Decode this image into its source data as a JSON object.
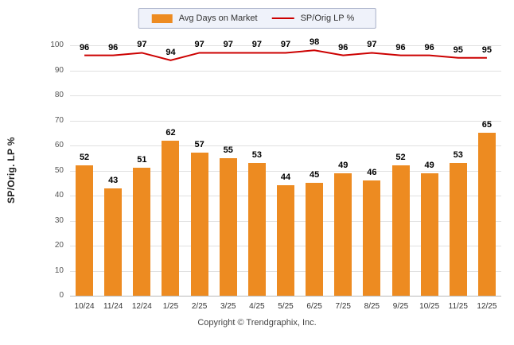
{
  "legend": {
    "bar_label": "Avg Days on Market",
    "line_label": "SP/Orig LP %"
  },
  "y_axis_title": "SP/Orig. LP %",
  "footer": "Copyright © Trendgraphix, Inc.",
  "colors": {
    "bar": "#ed8b21",
    "line": "#cc0000",
    "grid": "#e0e0e0"
  },
  "chart_data": {
    "type": "bar",
    "categories": [
      "10/24",
      "11/24",
      "12/24",
      "1/25",
      "2/25",
      "3/25",
      "4/25",
      "5/25",
      "6/25",
      "7/25",
      "8/25",
      "9/25",
      "10/25",
      "11/25",
      "12/25"
    ],
    "series": [
      {
        "name": "Avg Days on Market",
        "type": "bar",
        "values": [
          52,
          43,
          51,
          62,
          57,
          55,
          53,
          44,
          45,
          49,
          46,
          52,
          49,
          53,
          65
        ]
      },
      {
        "name": "SP/Orig LP %",
        "type": "line",
        "values": [
          96,
          96,
          97,
          94,
          97,
          97,
          97,
          97,
          98,
          96,
          97,
          96,
          96,
          95,
          95
        ]
      }
    ],
    "title": "",
    "xlabel": "",
    "ylabel": "SP/Orig. LP %",
    "ylim": [
      0,
      100
    ],
    "yticks": [
      0,
      10,
      20,
      30,
      40,
      50,
      60,
      70,
      80,
      90,
      100
    ],
    "grid": true,
    "legend_position": "top"
  }
}
